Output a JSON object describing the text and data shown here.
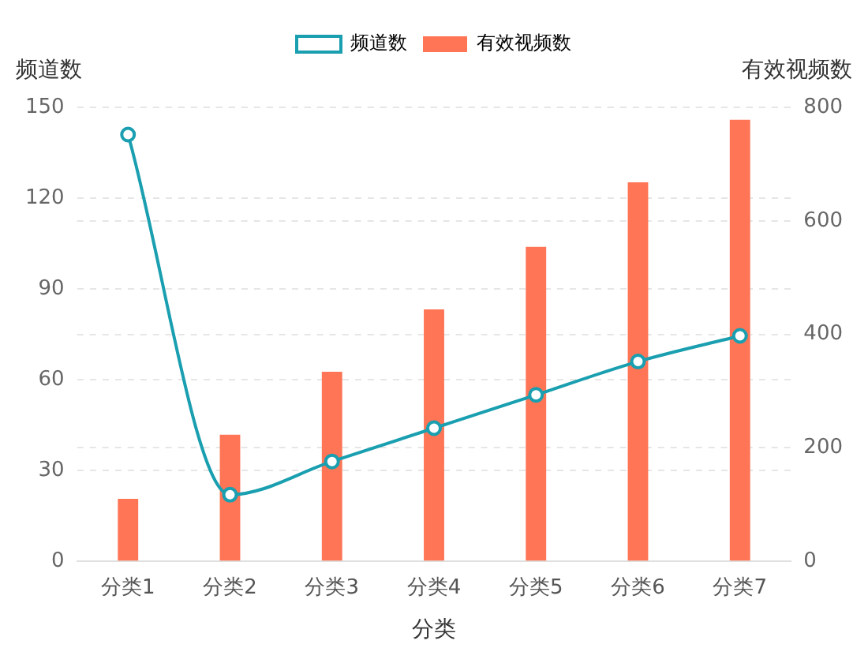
{
  "chart_data": {
    "type": "bar",
    "xlabel": "分类",
    "ylabel": "频道数",
    "y2label": "有效视频数",
    "categories": [
      "分类1",
      "分类2",
      "分类3",
      "分类4",
      "分类5",
      "分类6",
      "分类7"
    ],
    "series": [
      {
        "name": "频道数",
        "type": "line",
        "color": "#1a9fb0",
        "values": [
          141,
          22,
          33,
          44,
          55,
          66,
          74.5
        ]
      },
      {
        "name": "有效视频数",
        "axis": "y2",
        "color": "#ff7555",
        "values": [
          110,
          223,
          334,
          444,
          554,
          668,
          778
        ]
      }
    ],
    "ylim": [
      0,
      150
    ],
    "yticks": [
      0,
      30,
      60,
      90,
      120,
      150
    ],
    "y2lim": [
      0,
      800
    ],
    "y2ticks": [
      0,
      200,
      400,
      600,
      800
    ],
    "grid": "y",
    "legend": "top",
    "marker": "circle",
    "line_style": "solid"
  }
}
